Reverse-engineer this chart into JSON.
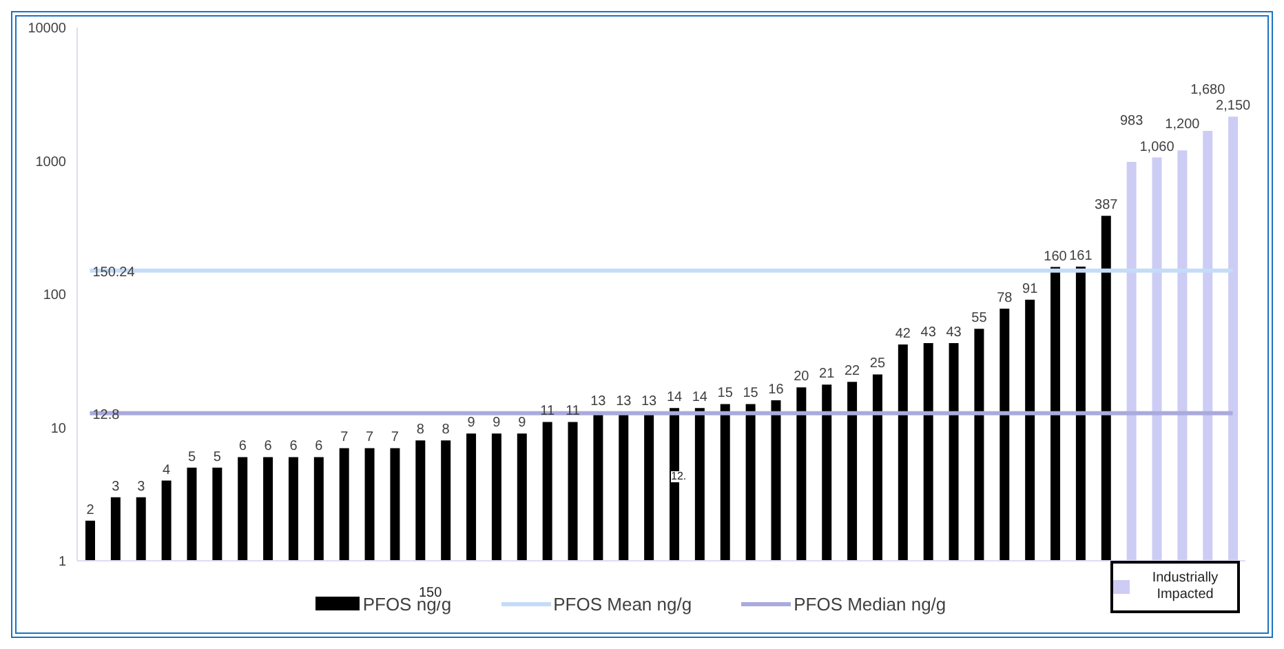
{
  "chart_data": {
    "type": "bar",
    "categories": [
      null,
      null,
      null,
      null,
      null,
      null,
      null,
      null,
      null,
      null,
      null,
      null,
      null,
      null,
      null,
      null,
      null,
      null,
      null,
      null,
      null,
      null,
      null,
      null,
      null,
      null,
      null,
      null,
      null,
      null,
      null,
      null,
      null,
      null,
      null,
      null,
      null,
      null,
      null,
      null,
      null,
      null,
      null,
      null,
      null,
      null
    ],
    "series": [
      {
        "name": "PFOS ng/g",
        "color": "#000000",
        "values": [
          2,
          3,
          3,
          4,
          5,
          5,
          6,
          6,
          6,
          6,
          7,
          7,
          7,
          8,
          8,
          9,
          9,
          9,
          11,
          11,
          13,
          13,
          13,
          14,
          14,
          15,
          15,
          16,
          20,
          21,
          22,
          25,
          42,
          43,
          43,
          55,
          78,
          91,
          160,
          161,
          387,
          null,
          null,
          null,
          null,
          null
        ],
        "value_labels": [
          "2",
          "3",
          "3",
          "4",
          "5",
          "5",
          "6",
          "6",
          "6",
          "6",
          "7",
          "7",
          "7",
          "8",
          "8",
          "9",
          "9",
          "9",
          "11",
          "11",
          "13",
          "13",
          "13",
          "14",
          "14",
          "15",
          "15",
          "16",
          "20",
          "21",
          "22",
          "25",
          "42",
          "43",
          "43",
          "55",
          "78",
          "91",
          "160",
          "161",
          "387",
          null,
          null,
          null,
          null,
          null
        ]
      },
      {
        "name": "PFOS Mean ng/g",
        "type": "line",
        "color": "#c5dcf8",
        "values": [
          150.24,
          150.24,
          150.24,
          150.24,
          150.24,
          150.24,
          150.24,
          150.24,
          150.24,
          150.24,
          150.24,
          150.24,
          150.24,
          150.24,
          150.24,
          150.24,
          150.24,
          150.24,
          150.24,
          150.24,
          150.24,
          150.24,
          150.24,
          150.24,
          150.24,
          150.24,
          150.24,
          150.24,
          150.24,
          150.24,
          150.24,
          150.24,
          150.24,
          150.24,
          150.24,
          150.24,
          150.24,
          150.24,
          150.24,
          150.24,
          150.24,
          150.24,
          150.24,
          150.24,
          150.24,
          150.24
        ],
        "value_labels": [
          "150.24",
          null,
          null,
          null,
          null,
          null,
          null,
          null,
          null,
          null,
          null,
          null,
          null,
          null,
          null,
          null,
          null,
          null,
          null,
          null,
          null,
          null,
          null,
          null,
          null,
          null,
          null,
          null,
          null,
          null,
          null,
          null,
          null,
          null,
          null,
          null,
          null,
          null,
          null,
          null,
          null,
          null,
          null,
          null,
          null,
          null
        ]
      },
      {
        "name": "PFOS Median ng/g",
        "type": "line",
        "color": "#aaaadd",
        "values": [
          12.8,
          12.8,
          12.8,
          12.8,
          12.8,
          12.8,
          12.8,
          12.8,
          12.8,
          12.8,
          12.8,
          12.8,
          12.8,
          12.8,
          12.8,
          12.8,
          12.8,
          12.8,
          12.8,
          12.8,
          12.8,
          12.8,
          12.8,
          12.8,
          12.8,
          12.8,
          12.8,
          12.8,
          12.8,
          12.8,
          12.8,
          12.8,
          12.8,
          12.8,
          12.8,
          12.8,
          12.8,
          12.8,
          12.8,
          12.8,
          12.8,
          12.8,
          12.8,
          12.8,
          12.8,
          12.8
        ],
        "value_labels": [
          "12.8",
          null,
          null,
          null,
          null,
          null,
          null,
          null,
          null,
          null,
          null,
          null,
          null,
          null,
          null,
          null,
          null,
          null,
          null,
          null,
          null,
          null,
          null,
          null,
          null,
          null,
          null,
          null,
          null,
          null,
          null,
          null,
          null,
          null,
          null,
          null,
          null,
          null,
          null,
          null,
          null,
          null,
          null,
          null,
          null,
          null
        ]
      },
      {
        "name": "Industrially Impacted",
        "color": "#ccccf5",
        "values": [
          null,
          null,
          null,
          null,
          null,
          null,
          null,
          null,
          null,
          null,
          null,
          null,
          null,
          null,
          null,
          null,
          null,
          null,
          null,
          null,
          null,
          null,
          null,
          null,
          null,
          null,
          null,
          null,
          null,
          null,
          null,
          null,
          null,
          null,
          null,
          null,
          null,
          null,
          null,
          null,
          null,
          983,
          1060,
          1200,
          1680,
          2150
        ],
        "value_labels": [
          null,
          null,
          null,
          null,
          null,
          null,
          null,
          null,
          null,
          null,
          null,
          null,
          null,
          null,
          null,
          null,
          null,
          null,
          null,
          null,
          null,
          null,
          null,
          null,
          null,
          null,
          null,
          null,
          null,
          null,
          null,
          null,
          null,
          null,
          null,
          null,
          null,
          null,
          null,
          null,
          null,
          "983",
          "1,060",
          "1,200",
          "1,680",
          "2,150"
        ]
      }
    ],
    "log": "y",
    "ylim": [
      1,
      10000
    ],
    "yticks": [
      1,
      10,
      100,
      1000,
      10000
    ],
    "tick_labels": "y",
    "legend": "bottom",
    "marker": "none",
    "annotations": [
      "150",
      "12."
    ]
  }
}
